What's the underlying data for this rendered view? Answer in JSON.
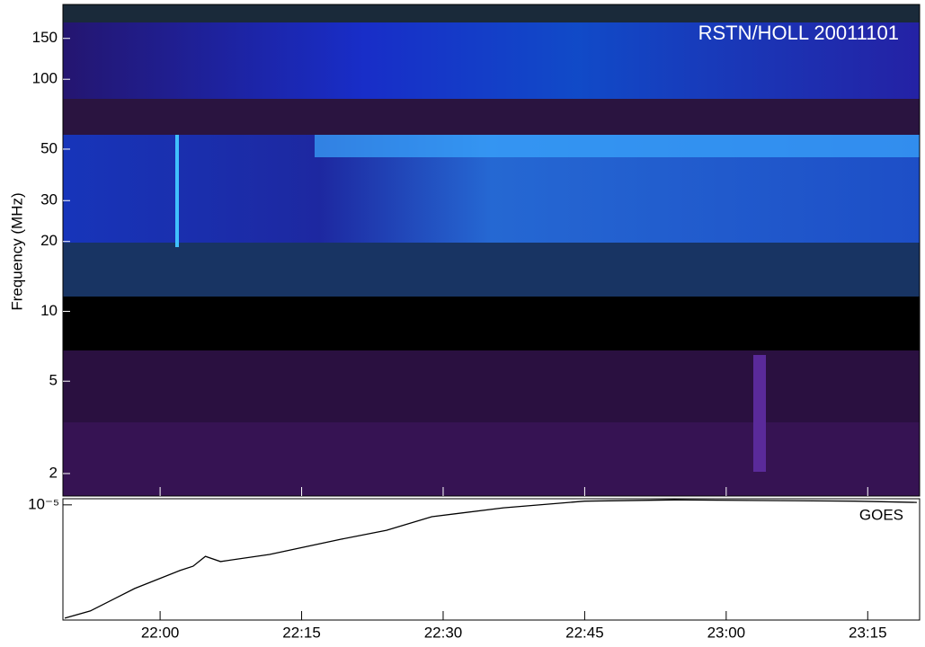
{
  "chart_data": [
    {
      "type": "spectrogram",
      "title": "RSTN/HOLL 20011101",
      "ylabel": "Frequency (MHz)",
      "yscale": "log",
      "ylim": [
        1.6,
        210
      ],
      "yticks": [
        2,
        5,
        10,
        20,
        30,
        50,
        100,
        150
      ]
    },
    {
      "type": "line",
      "title": "GOES",
      "yscale": "log",
      "color": "#000000",
      "xlim": [
        1309.7,
        1400.5
      ],
      "xticks": [
        {
          "value": 1320,
          "label": "22:00"
        },
        {
          "value": 1335,
          "label": "22:15"
        },
        {
          "value": 1350,
          "label": "22:30"
        },
        {
          "value": 1365,
          "label": "22:45"
        },
        {
          "value": 1380,
          "label": "23:00"
        },
        {
          "value": 1395,
          "label": "23:15"
        }
      ],
      "ylim": [
        4e-06,
        1.05e-05
      ],
      "yticks": [
        {
          "value": 1e-05,
          "label": "10⁻⁵"
        }
      ],
      "x": [
        1309.9,
        1312.6,
        1317.3,
        1322.1,
        1323.5,
        1324.8,
        1326.4,
        1331.6,
        1339.2,
        1344.0,
        1348.8,
        1356.4,
        1365.0,
        1374.5,
        1384.0,
        1393.6,
        1400.2
      ],
      "values": [
        4.06e-06,
        4.3e-06,
        5.14e-06,
        5.93e-06,
        6.14e-06,
        6.64e-06,
        6.37e-06,
        6.74e-06,
        7.61e-06,
        8.17e-06,
        9.1e-06,
        9.77e-06,
        1.03e-05,
        1.04e-05,
        1.035e-05,
        1.03e-05,
        1.02e-05
      ]
    }
  ]
}
